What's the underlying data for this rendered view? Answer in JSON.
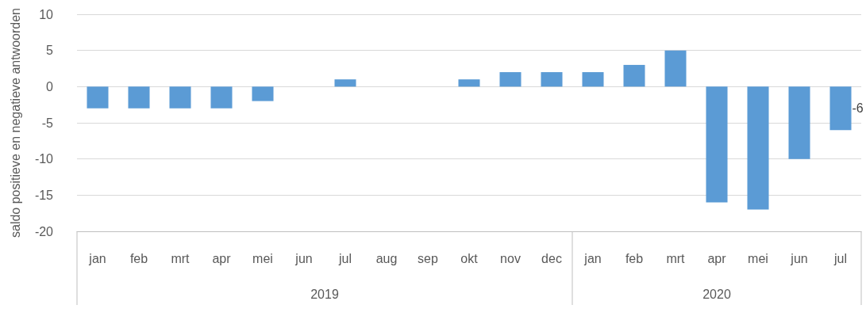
{
  "chart_data": {
    "type": "bar",
    "ylabel": "saldo positieve en negatieve antwoorden",
    "categories": [
      "jan",
      "feb",
      "mrt",
      "apr",
      "mei",
      "jun",
      "jul",
      "aug",
      "sep",
      "okt",
      "nov",
      "dec",
      "jan",
      "feb",
      "mrt",
      "apr",
      "mei",
      "jun",
      "jul"
    ],
    "values": [
      -3,
      -3,
      -3,
      -3,
      -2,
      0,
      1,
      0,
      0,
      1,
      2,
      2,
      2,
      3,
      5,
      -16,
      -17,
      -10,
      -6
    ],
    "value_labels": [
      null,
      null,
      null,
      null,
      null,
      null,
      null,
      null,
      null,
      null,
      null,
      null,
      null,
      null,
      null,
      null,
      null,
      null,
      "-6"
    ],
    "color": "#5b9bd5",
    "ylim": [
      -20,
      10
    ],
    "yticks": [
      -20,
      -15,
      -10,
      -5,
      0,
      5,
      10
    ],
    "grid": "y",
    "annotations": [
      "2019",
      "2020"
    ]
  }
}
